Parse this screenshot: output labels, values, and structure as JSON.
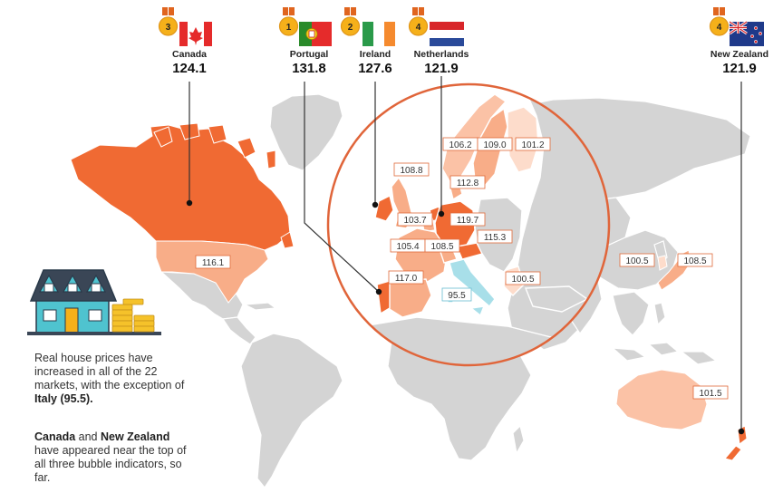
{
  "colors": {
    "land": "#d4d4d4",
    "border": "#ffffff",
    "very_high": "#f06a33",
    "high": "#f8ad88",
    "mid": "#fbc2a6",
    "low": "#fddccb",
    "italy": "#a8dfe9",
    "circle": "#e0653a",
    "leader": "#333333",
    "medal_gold": "#f5b01a",
    "ribbon": "#e0651f"
  },
  "highlights": [
    {
      "rank": "3",
      "name": "Canada",
      "value": "124.1",
      "flag": "canada-flag-icon"
    },
    {
      "rank": "1",
      "name": "Portugal",
      "value": "131.8",
      "flag": "portugal-flag-icon"
    },
    {
      "rank": "2",
      "name": "Ireland",
      "value": "127.6",
      "flag": "ireland-flag-icon"
    },
    {
      "rank": "4",
      "name": "Netherlands",
      "value": "121.9",
      "flag": "netherlands-flag-icon"
    },
    {
      "rank": "4",
      "name": "New Zealand",
      "value": "121.9",
      "flag": "new-zealand-flag-icon"
    }
  ],
  "value_labels": [
    {
      "text": "116.1",
      "tone": "orange"
    },
    {
      "text": "106.2",
      "tone": "orange"
    },
    {
      "text": "109.0",
      "tone": "orange"
    },
    {
      "text": "101.2",
      "tone": "orange"
    },
    {
      "text": "108.8",
      "tone": "orange"
    },
    {
      "text": "112.8",
      "tone": "orange"
    },
    {
      "text": "103.7",
      "tone": "orange"
    },
    {
      "text": "119.7",
      "tone": "orange"
    },
    {
      "text": "105.4",
      "tone": "orange"
    },
    {
      "text": "108.5",
      "tone": "orange"
    },
    {
      "text": "115.3",
      "tone": "orange"
    },
    {
      "text": "117.0",
      "tone": "orange"
    },
    {
      "text": "100.5",
      "tone": "orange"
    },
    {
      "text": "95.5",
      "tone": "blue"
    },
    {
      "text": "100.5",
      "tone": "orange"
    },
    {
      "text": "108.5",
      "tone": "orange"
    },
    {
      "text": "101.5",
      "tone": "orange"
    }
  ],
  "notes": {
    "p1_a": "Real house prices have increased in all of the 22 markets, with the exception of ",
    "p1_b": "Italy (95.5).",
    "p2_a": "Canada",
    "p2_b": " and ",
    "p2_c": "New Zealand",
    "p2_d": " have appeared near the top of all three bubble indicators, so far."
  }
}
